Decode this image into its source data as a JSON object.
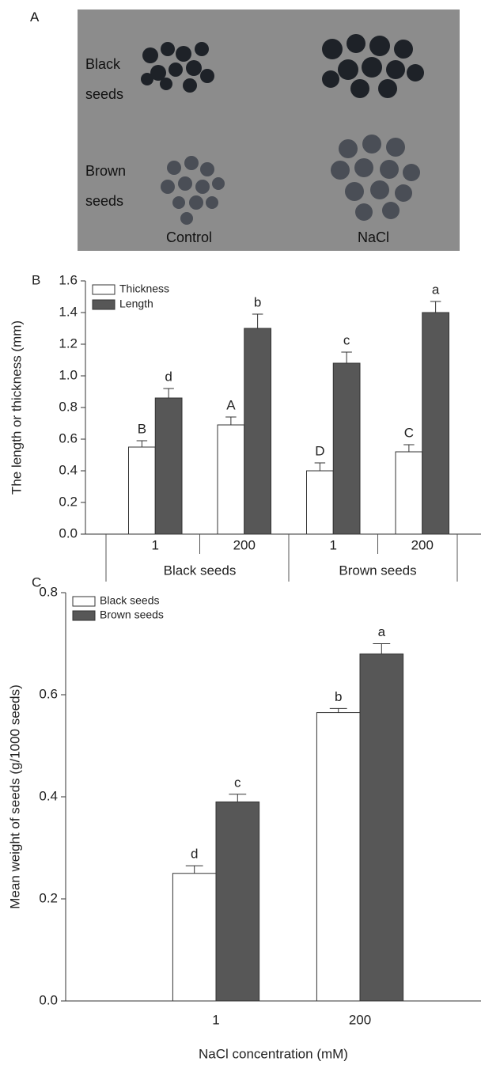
{
  "panel_a": {
    "label": "A",
    "row_labels": [
      "Black seeds",
      "Brown seeds"
    ],
    "column_labels": [
      "Control",
      "NaCl"
    ]
  },
  "chart_data": [
    {
      "type": "bar",
      "panel_label": "B",
      "y_label": "The length or thickness (mm)",
      "groups": [
        "Black seeds",
        "Brown seeds"
      ],
      "categories": [
        "1",
        "200",
        "1",
        "200"
      ],
      "series": [
        {
          "name": "Thickness",
          "color": "#ffffff",
          "values": [
            0.55,
            0.69,
            0.4,
            0.52
          ],
          "errors": [
            0.04,
            0.05,
            0.05,
            0.045
          ],
          "letters": [
            "B",
            "A",
            "D",
            "C"
          ]
        },
        {
          "name": "Length",
          "color": "#575757",
          "values": [
            0.86,
            1.3,
            1.08,
            1.4
          ],
          "errors": [
            0.06,
            0.09,
            0.07,
            0.07
          ],
          "letters": [
            "d",
            "b",
            "c",
            "a"
          ]
        }
      ],
      "ylim": [
        0,
        1.6
      ],
      "yticks": [
        {
          "value": 0,
          "label": "0.0"
        },
        0.2,
        0.4,
        0.6,
        0.8,
        {
          "value": 1,
          "label": "1.0"
        },
        1.2,
        1.4,
        1.6
      ],
      "legend": "upper left"
    },
    {
      "type": "bar",
      "panel_label": "C",
      "y_label": "Mean weight of seeds (g/1000 seeds)",
      "x_label": "NaCl concentration (mM)",
      "categories": [
        "1",
        "200"
      ],
      "series": [
        {
          "name": "Black seeds",
          "color": "#ffffff",
          "values": [
            0.25,
            0.565
          ],
          "errors": [
            0.015,
            0.008
          ],
          "letters": [
            "d",
            "b"
          ]
        },
        {
          "name": "Brown seeds",
          "color": "#575757",
          "values": [
            0.39,
            0.68
          ],
          "errors": [
            0.015,
            0.02
          ],
          "letters": [
            "c",
            "a"
          ]
        }
      ],
      "ylim": [
        0,
        0.8
      ],
      "yticks": [
        {
          "value": 0,
          "label": "0.0"
        },
        0.2,
        0.4,
        0.6,
        0.8
      ],
      "legend": "upper left"
    }
  ]
}
